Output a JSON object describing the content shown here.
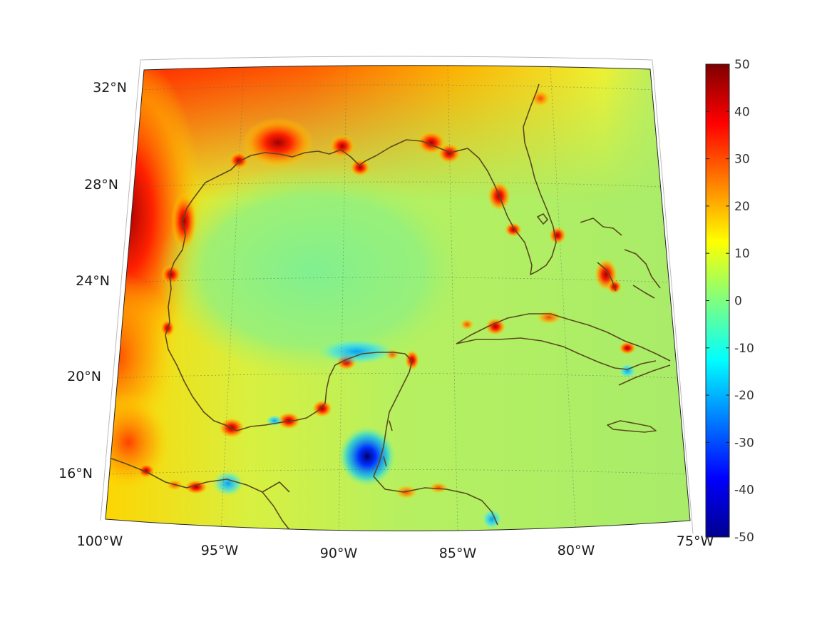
{
  "map": {
    "projection": "conic",
    "lon_range": [
      -100,
      -75
    ],
    "lat_range": [
      14,
      33
    ],
    "graticule": "dotted",
    "coastline_color": "#5a4a1e",
    "longitude_labels": [
      "100°W",
      "95°W",
      "90°W",
      "85°W",
      "80°W",
      "75°W"
    ],
    "latitude_labels": [
      "32°N",
      "28°N",
      "24°N",
      "20°N",
      "16°N"
    ]
  },
  "colorbar": {
    "colormap": "jet",
    "min": -50,
    "max": 50,
    "tick_labels": [
      "50",
      "40",
      "30",
      "20",
      "10",
      "0",
      "-10",
      "-20",
      "-30",
      "-40",
      "-50"
    ]
  }
}
